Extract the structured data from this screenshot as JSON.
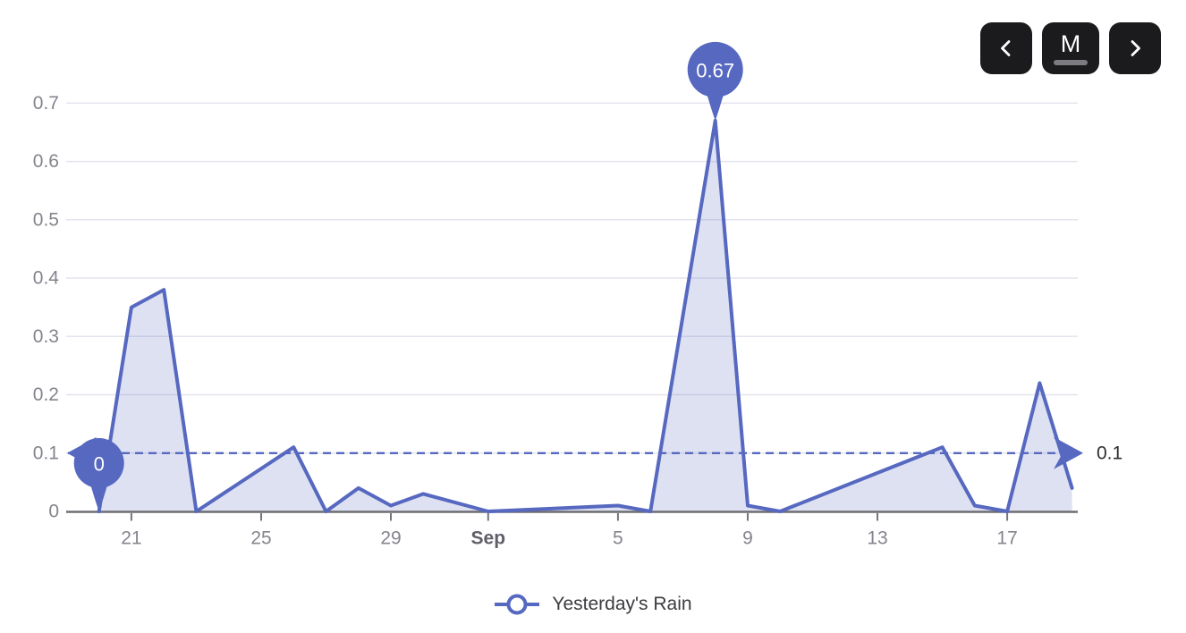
{
  "toolbar": {
    "prev_button": "previous period",
    "mode_label": "M",
    "next_button": "next period"
  },
  "legend": {
    "series_label": "Yesterday's Rain"
  },
  "chart_data": {
    "type": "area",
    "title": "",
    "series_name": "Yesterday's Rain",
    "xlabel": "",
    "ylabel": "",
    "ylim": [
      0,
      0.7
    ],
    "grid": true,
    "legend_position": "bottom-center",
    "x_range": "Aug 20 - Sep 19",
    "points": [
      {
        "date": "Aug 20",
        "day": 1,
        "value": 0
      },
      {
        "date": "Aug 21",
        "day": 2,
        "value": 0.35
      },
      {
        "date": "Aug 22",
        "day": 3,
        "value": 0.38
      },
      {
        "date": "Aug 23",
        "day": 4,
        "value": 0
      },
      {
        "date": "Aug 26",
        "day": 7,
        "value": 0.11
      },
      {
        "date": "Aug 27",
        "day": 8,
        "value": 0
      },
      {
        "date": "Aug 28",
        "day": 9,
        "value": 0.04
      },
      {
        "date": "Aug 29",
        "day": 10,
        "value": 0.01
      },
      {
        "date": "Aug 30",
        "day": 11,
        "value": 0.03
      },
      {
        "date": "Sep 1",
        "day": 13,
        "value": 0
      },
      {
        "date": "Sep 5",
        "day": 17,
        "value": 0.01
      },
      {
        "date": "Sep 6",
        "day": 18,
        "value": 0
      },
      {
        "date": "Sep 8",
        "day": 20,
        "value": 0.67
      },
      {
        "date": "Sep 9",
        "day": 21,
        "value": 0.01
      },
      {
        "date": "Sep 10",
        "day": 22,
        "value": 0
      },
      {
        "date": "Sep 15",
        "day": 27,
        "value": 0.11
      },
      {
        "date": "Sep 16",
        "day": 28,
        "value": 0.01
      },
      {
        "date": "Sep 17",
        "day": 29,
        "value": 0
      },
      {
        "date": "Sep 18",
        "day": 30,
        "value": 0.22
      },
      {
        "date": "Sep 19",
        "day": 31,
        "value": 0.04
      }
    ],
    "x_ticks": [
      {
        "label": "21",
        "day": 2,
        "bold": false
      },
      {
        "label": "25",
        "day": 6,
        "bold": false
      },
      {
        "label": "29",
        "day": 10,
        "bold": false
      },
      {
        "label": "Sep",
        "day": 13,
        "bold": true
      },
      {
        "label": "5",
        "day": 17,
        "bold": false
      },
      {
        "label": "9",
        "day": 21,
        "bold": false
      },
      {
        "label": "13",
        "day": 25,
        "bold": false
      },
      {
        "label": "17",
        "day": 29,
        "bold": false
      }
    ],
    "y_ticks": [
      {
        "value": 0,
        "label": "0"
      },
      {
        "value": 0.1,
        "label": "0.1"
      },
      {
        "value": 0.2,
        "label": "0.2"
      },
      {
        "value": 0.3,
        "label": "0.3"
      },
      {
        "value": 0.4,
        "label": "0.4"
      },
      {
        "value": 0.5,
        "label": "0.5"
      },
      {
        "value": 0.6,
        "label": "0.6"
      },
      {
        "value": 0.7,
        "label": "0.7"
      }
    ],
    "target_line": {
      "value": 0.1,
      "label": "0.1",
      "style": "dashed",
      "arrows": "both"
    },
    "markers": [
      {
        "day": 1,
        "date": "Aug 20",
        "label": "0"
      },
      {
        "day": 20,
        "date": "Sep 8",
        "label": "0.67"
      }
    ],
    "colors": {
      "accent": "#5668C0",
      "area_fill": "rgba(91,107,192,0.2)",
      "grid": "#e4e4ef",
      "axis": "#6d6d73",
      "tick": "#75757d",
      "axis_label": "#84848d",
      "axis_label_strong": "#5f5f68",
      "annotation_text": "#2e2e33",
      "balloon_text": "#ffffff"
    }
  }
}
